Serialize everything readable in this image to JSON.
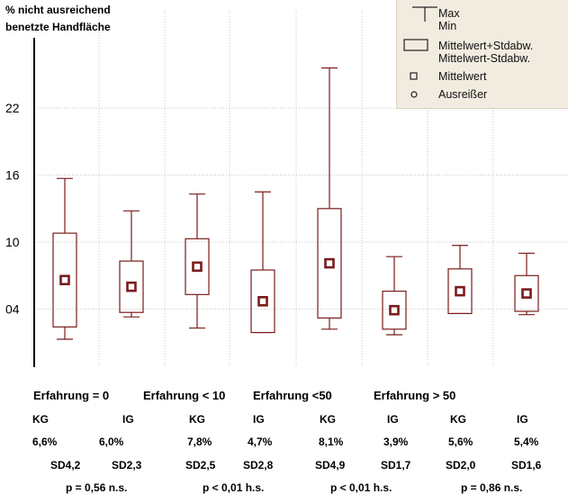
{
  "chart_data": {
    "type": "box",
    "ylabel_lines": [
      "% nicht ausreichend",
      "benetzte Handfläche"
    ],
    "yticks": [
      "04",
      "10",
      "16",
      "22"
    ],
    "ytick_values": [
      4,
      10,
      16,
      22
    ],
    "ylim": [
      -1.2,
      28.3
    ],
    "grid": true,
    "legend_position": "top-right",
    "boxes": [
      {
        "mean": 6.6,
        "box_low": 2.4,
        "box_high": 10.8,
        "min": 1.3,
        "max": 15.7
      },
      {
        "mean": 6.0,
        "box_low": 3.7,
        "box_high": 8.3,
        "min": 3.3,
        "max": 12.8
      },
      {
        "mean": 7.8,
        "box_low": 5.3,
        "box_high": 10.3,
        "min": 2.3,
        "max": 14.3
      },
      {
        "mean": 4.7,
        "box_low": 1.9,
        "box_high": 7.5,
        "min": 1.9,
        "max": 14.5
      },
      {
        "mean": 8.1,
        "box_low": 3.2,
        "box_high": 13.0,
        "min": 2.2,
        "max": 25.6
      },
      {
        "mean": 3.9,
        "box_low": 2.2,
        "box_high": 5.6,
        "min": 1.7,
        "max": 8.7
      },
      {
        "mean": 5.6,
        "box_low": 3.6,
        "box_high": 7.6,
        "min": 3.6,
        "max": 9.7
      },
      {
        "mean": 5.4,
        "box_low": 3.8,
        "box_high": 7.0,
        "min": 3.5,
        "max": 9.0
      }
    ],
    "colors": {
      "box": "#7a1c1c",
      "grid": "#c9c9c9",
      "axis": "#000000"
    }
  },
  "legend": {
    "max_label": "Max",
    "min_label": "Min",
    "box_label_1": "Mittelwert+Stdabw.",
    "box_label_2": "Mittelwert-Stdabw.",
    "mean_label": "Mittelwert",
    "outlier_label": "Ausreißer"
  },
  "stats": {
    "groups": [
      "Erfahrung = 0",
      "Erfahrung < 10",
      "Erfahrung <50",
      "Erfahrung > 50"
    ],
    "subgroups": [
      "KG",
      "IG",
      "KG",
      "IG",
      "KG",
      "IG",
      "KG",
      "IG"
    ],
    "means": [
      "6,6%",
      "6,0%",
      "7,8%",
      "4,7%",
      "8,1%",
      "3,9%",
      "5,6%",
      "5,4%"
    ],
    "sds": [
      "SD4,2",
      "SD2,3",
      "SD2,5",
      "SD2,8",
      "SD4,9",
      "SD1,7",
      "SD2,0",
      "SD1,6"
    ],
    "pvalues": [
      "p = 0,56 n.s.",
      "p < 0,01 h.s.",
      "p < 0,01 h.s.",
      "p = 0,86 n.s."
    ]
  }
}
